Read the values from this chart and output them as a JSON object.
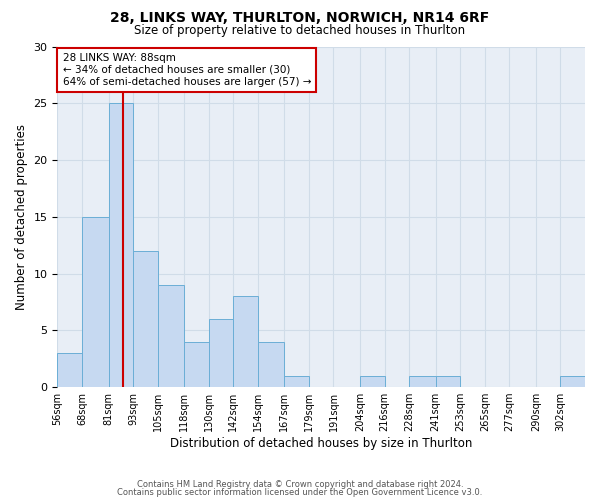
{
  "title": "28, LINKS WAY, THURLTON, NORWICH, NR14 6RF",
  "subtitle": "Size of property relative to detached houses in Thurlton",
  "xlabel": "Distribution of detached houses by size in Thurlton",
  "ylabel": "Number of detached properties",
  "footnote1": "Contains HM Land Registry data © Crown copyright and database right 2024.",
  "footnote2": "Contains public sector information licensed under the Open Government Licence v3.0.",
  "bin_labels": [
    "56sqm",
    "68sqm",
    "81sqm",
    "93sqm",
    "105sqm",
    "118sqm",
    "130sqm",
    "142sqm",
    "154sqm",
    "167sqm",
    "179sqm",
    "191sqm",
    "204sqm",
    "216sqm",
    "228sqm",
    "241sqm",
    "253sqm",
    "265sqm",
    "277sqm",
    "290sqm",
    "302sqm"
  ],
  "bar_heights": [
    3,
    15,
    25,
    12,
    9,
    4,
    6,
    8,
    4,
    1,
    0,
    0,
    1,
    0,
    1,
    1,
    0,
    0,
    0,
    0,
    1
  ],
  "bar_color": "#c6d9f1",
  "bar_edge_color": "#6baed6",
  "vline_color": "#cc0000",
  "annotation_title": "28 LINKS WAY: 88sqm",
  "annotation_line1": "← 34% of detached houses are smaller (30)",
  "annotation_line2": "64% of semi-detached houses are larger (57) →",
  "annotation_box_color": "#cc0000",
  "ylim": [
    0,
    30
  ],
  "yticks": [
    0,
    5,
    10,
    15,
    20,
    25,
    30
  ],
  "bin_edges": [
    56,
    68,
    81,
    93,
    105,
    118,
    130,
    142,
    154,
    167,
    179,
    191,
    204,
    216,
    228,
    241,
    253,
    265,
    277,
    290,
    302,
    314
  ],
  "property_size": 88,
  "background_color": "#ffffff",
  "grid_color": "#d0dce8"
}
